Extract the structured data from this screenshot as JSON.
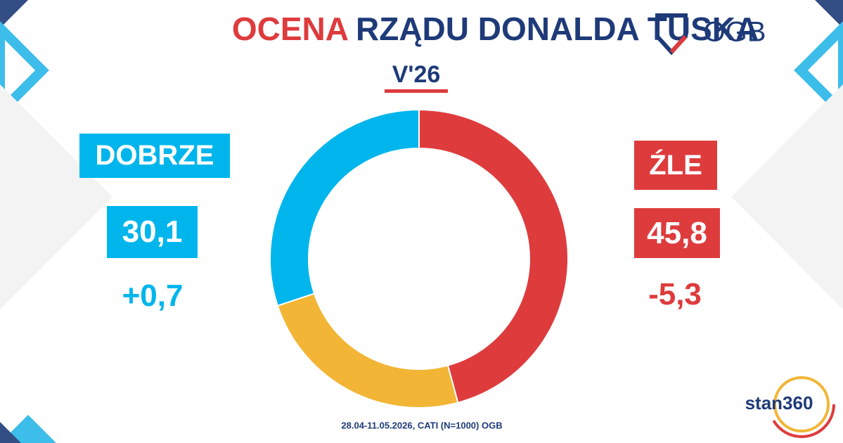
{
  "chart_data": {
    "type": "pie",
    "title_highlight": "OCENA",
    "title": "RZĄDU DONALDA TUSKA",
    "subtitle": "V'26",
    "categories": [
      "ŹLE",
      null,
      "DOBRZE"
    ],
    "values": [
      45.8,
      24.1,
      30.1
    ],
    "value_labels": [
      "45,8",
      null,
      "30,1"
    ],
    "change_labels": [
      "-5,3",
      null,
      "+0,7"
    ],
    "colors": [
      "#de3b3d",
      "#f2b535",
      "#00b5ec"
    ],
    "footnote": "28.04-11.05.2026, CATI (N=1000) OGB",
    "logos": [
      "OGB",
      "stan360"
    ]
  }
}
